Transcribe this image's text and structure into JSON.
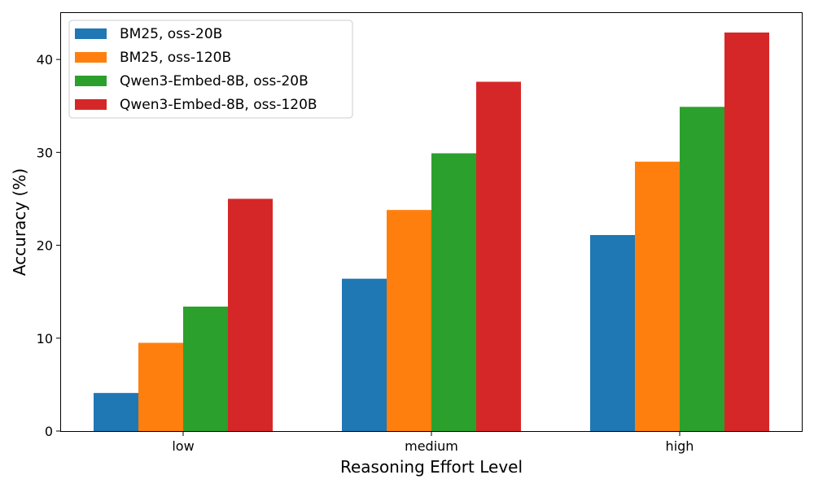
{
  "chart_data": {
    "type": "bar",
    "title": "",
    "xlabel": "Reasoning Effort Level",
    "ylabel": "Accuracy (%)",
    "categories": [
      "low",
      "medium",
      "high"
    ],
    "ylim": [
      0,
      45
    ],
    "yticks": [
      0,
      10,
      20,
      30,
      40
    ],
    "grid": false,
    "legend_position": "top-left",
    "series": [
      {
        "name": "BM25, oss-20B",
        "color": "#1f77b4",
        "values": [
          4.1,
          16.4,
          21.1
        ]
      },
      {
        "name": "BM25, oss-120B",
        "color": "#ff7f0e",
        "values": [
          9.5,
          23.8,
          29.0
        ]
      },
      {
        "name": "Qwen3-Embed-8B, oss-20B",
        "color": "#2ca02c",
        "values": [
          13.4,
          29.9,
          34.9
        ]
      },
      {
        "name": "Qwen3-Embed-8B, oss-120B",
        "color": "#d62728",
        "values": [
          25.0,
          37.6,
          42.9
        ]
      }
    ]
  }
}
